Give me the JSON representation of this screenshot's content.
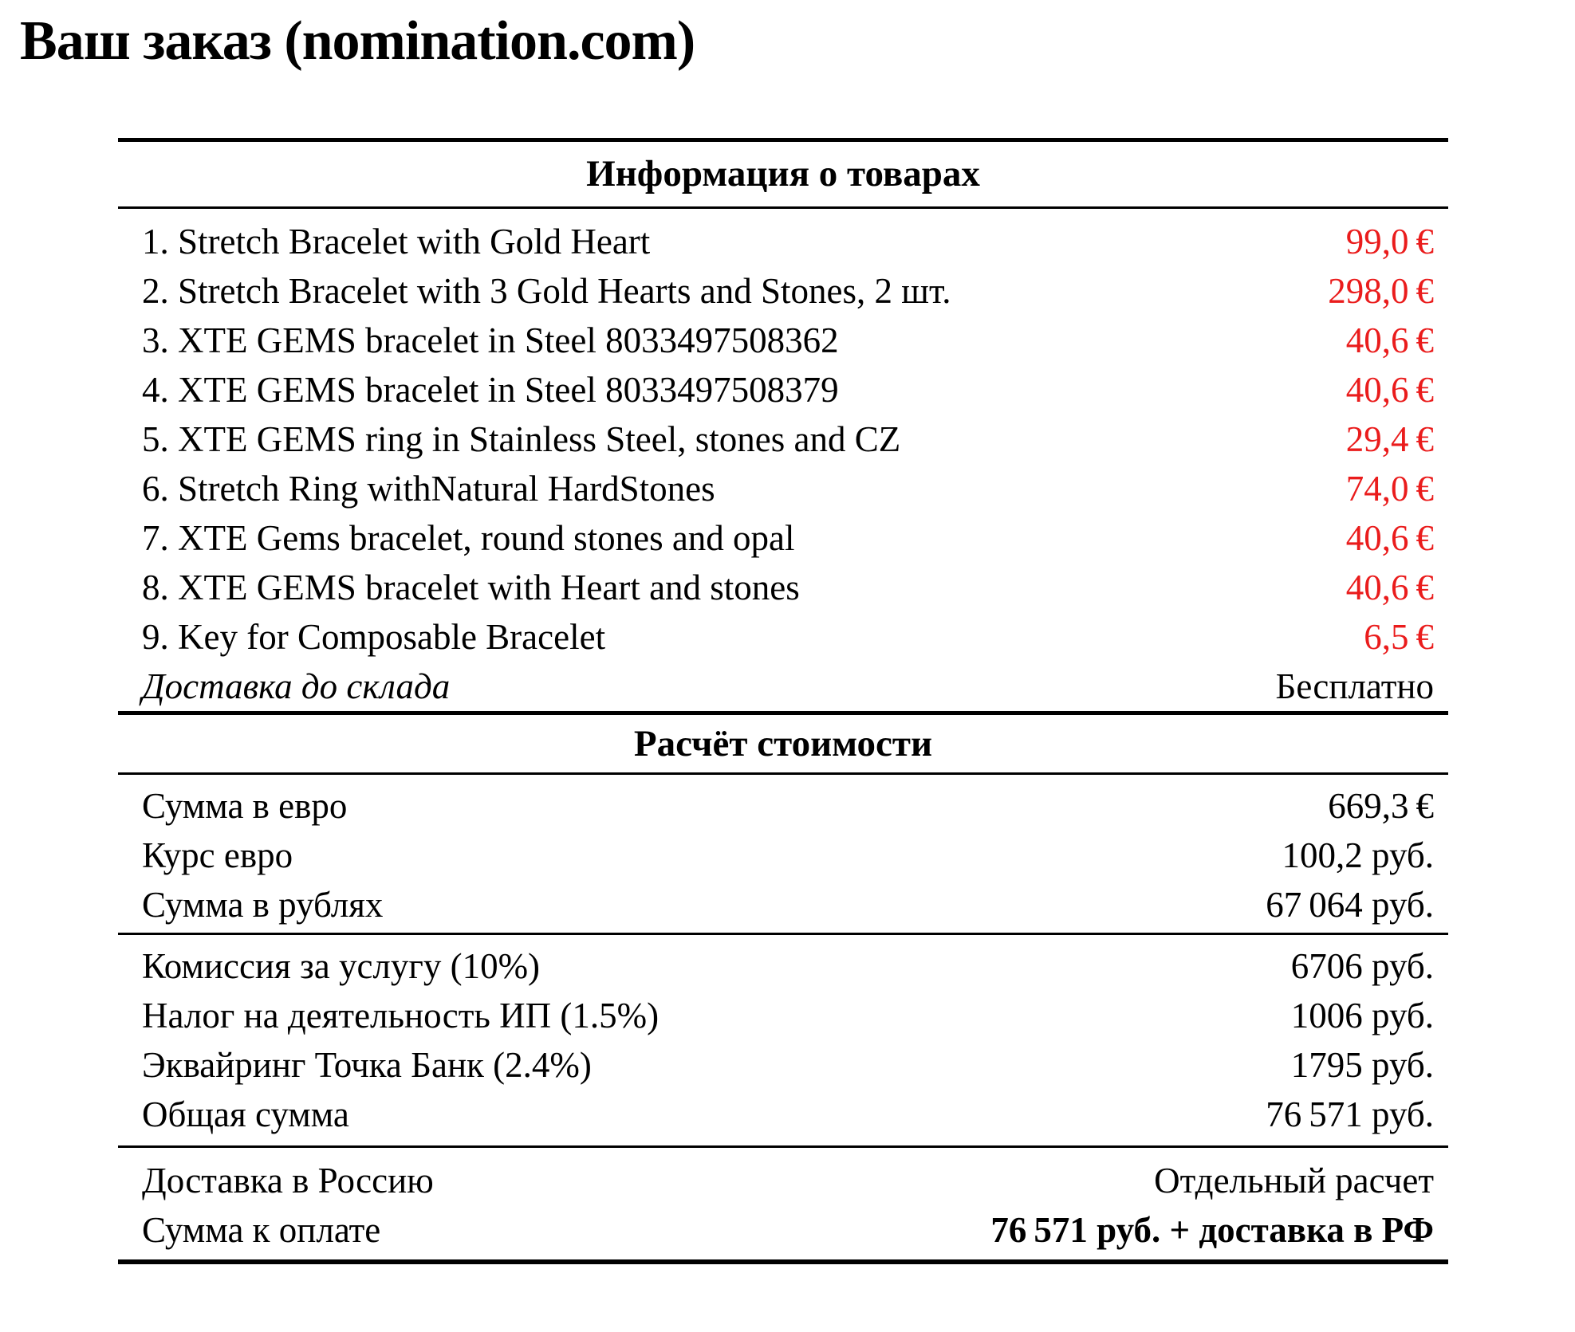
{
  "title": "Ваш заказ (nomination.com)",
  "colors": {
    "price_red": "#ea1c1c",
    "text": "#000000",
    "background": "#ffffff"
  },
  "products": {
    "header": "Информация о товарах",
    "rows": [
      {
        "label": "1. Stretch Bracelet with Gold Heart",
        "value": "99,0 €"
      },
      {
        "label": "2. Stretch Bracelet with 3 Gold Hearts and Stones, 2 шт.",
        "value": "298,0 €"
      },
      {
        "label": "3. XTE GEMS bracelet in Steel 8033497508362",
        "value": "40,6 €"
      },
      {
        "label": "4. XTE GEMS bracelet in Steel 8033497508379",
        "value": "40,6 €"
      },
      {
        "label": "5. XTE GEMS ring in Stainless Steel, stones and CZ",
        "value": "29,4 €"
      },
      {
        "label": "6. Stretch Ring withNatural HardStones",
        "value": "74,0 €"
      },
      {
        "label": "7. XTE Gems bracelet, round stones and opal",
        "value": "40,6 €"
      },
      {
        "label": "8. XTE GEMS bracelet with Heart and stones",
        "value": "40,6 €"
      },
      {
        "label": "9. Key for Composable Bracelet",
        "value": "6,5 €"
      },
      {
        "label": "Доставка до склада",
        "value": "Бесплатно"
      }
    ]
  },
  "calc": {
    "header": "Расчёт стоимости",
    "totals_eur": [
      {
        "label": "Сумма в евро",
        "value": "669,3 €"
      },
      {
        "label": "Курс евро",
        "value": "100,2 руб."
      },
      {
        "label": "Сумма в рублях",
        "value": "67 064 руб."
      }
    ],
    "fees": [
      {
        "label": "Комиссия за услугу (10%)",
        "value": "6706 руб."
      },
      {
        "label": "Налог на деятельность ИП (1.5%)",
        "value": "1006 руб."
      },
      {
        "label": "Эквайринг Точка Банк (2.4%)",
        "value": "1795 руб."
      },
      {
        "label": "Общая сумма",
        "value": "76 571 руб."
      }
    ],
    "payment": [
      {
        "label": "Доставка в Россию",
        "value": "Отдельный расчет"
      },
      {
        "label": "Сумма к оплате",
        "value": "76 571 руб. + доставка в РФ"
      }
    ]
  }
}
